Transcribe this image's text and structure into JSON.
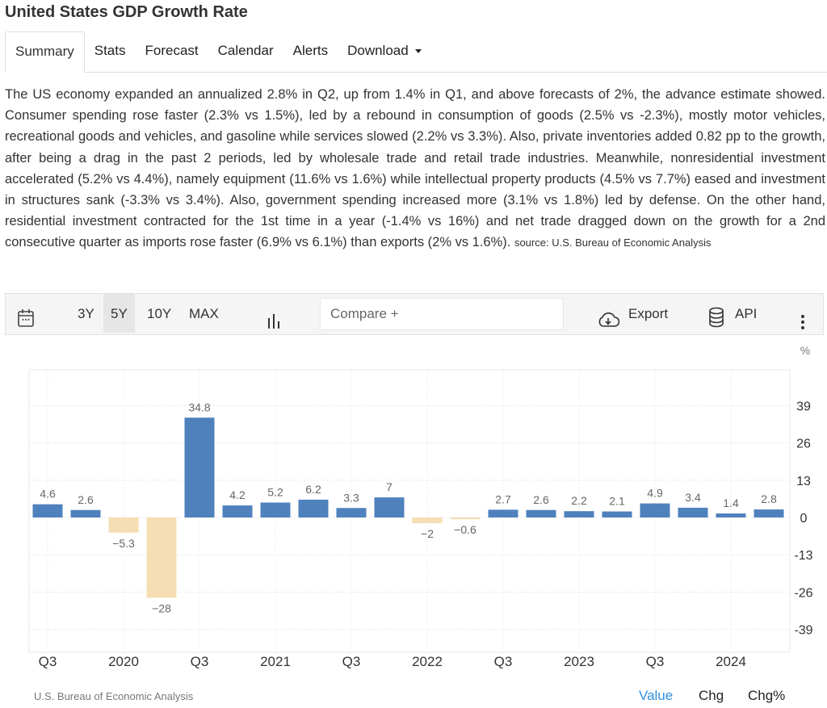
{
  "header": {
    "title": "United States GDP Growth Rate"
  },
  "tabs": [
    "Summary",
    "Stats",
    "Forecast",
    "Calendar",
    "Alerts",
    "Download"
  ],
  "summary": {
    "text": "The US economy expanded an annualized 2.8% in Q2, up from 1.4% in Q1, and above forecasts of 2%, the advance estimate showed. Consumer spending rose faster (2.3% vs 1.5%), led by a rebound in consumption of goods (2.5% vs -2.3%), mostly motor vehicles, recreational goods and vehicles, and gasoline while services slowed (2.2% vs 3.3%). Also, private inventories added 0.82 pp to the growth, after being a drag in the past 2 periods, led by wholesale trade and retail trade industries. Meanwhile, nonresidential investment accelerated (5.2% vs 4.4%), namely equipment (11.6% vs 1.6%) while intellectual property products (4.5% vs 7.7%) eased and investment in structures sank (-3.3% vs 3.4%). Also, government spending increased more (3.1% vs 1.8%) led by defense. On the other hand, residential investment contracted for the 1st time in a year (-1.4% vs 16%) and net trade dragged down on the growth for a 2nd consecutive quarter as imports rose faster (6.9% vs 6.1%) than exports (2% vs 1.6%).",
    "source": "source: U.S. Bureau of Economic Analysis"
  },
  "toolbar": {
    "ranges": [
      "3Y",
      "5Y",
      "10Y",
      "MAX"
    ],
    "selected": "5Y",
    "compare_placeholder": "Compare +",
    "export": "Export",
    "api": "API"
  },
  "chart_data": {
    "type": "bar",
    "unit": "%",
    "categories": [
      "2019 Q3",
      "2019 Q4",
      "2020 Q1",
      "2020 Q2",
      "2020 Q3",
      "2020 Q4",
      "2021 Q1",
      "2021 Q2",
      "2021 Q3",
      "2021 Q4",
      "2022 Q1",
      "2022 Q2",
      "2022 Q3",
      "2022 Q4",
      "2023 Q1",
      "2023 Q2",
      "2023 Q3",
      "2023 Q4",
      "2024 Q1",
      "2024 Q2"
    ],
    "values": [
      4.6,
      2.6,
      -5.3,
      -28,
      34.8,
      4.2,
      5.2,
      6.2,
      3.3,
      7,
      -2,
      -0.6,
      2.7,
      2.6,
      2.2,
      2.1,
      4.9,
      3.4,
      1.4,
      2.8
    ],
    "xticks": [
      {
        "index": 0,
        "label": "Q3"
      },
      {
        "index": 2,
        "label": "2020"
      },
      {
        "index": 4,
        "label": "Q3"
      },
      {
        "index": 6,
        "label": "2021"
      },
      {
        "index": 8,
        "label": "Q3"
      },
      {
        "index": 10,
        "label": "2022"
      },
      {
        "index": 12,
        "label": "Q3"
      },
      {
        "index": 14,
        "label": "2023"
      },
      {
        "index": 16,
        "label": "Q3"
      },
      {
        "index": 18,
        "label": "2024"
      }
    ],
    "yticks": [
      39,
      26,
      13,
      0,
      -13,
      -26,
      -39
    ],
    "ylim": [
      -47,
      51.5
    ],
    "colors": {
      "positive": "#4f81bd",
      "negative": "#f5deb3"
    },
    "grid": true
  },
  "footer": {
    "source": "U.S. Bureau of Economic Analysis",
    "views": [
      "Value",
      "Chg",
      "Chg%"
    ],
    "active_view": "Value",
    "accent": "#2f8fdf"
  }
}
